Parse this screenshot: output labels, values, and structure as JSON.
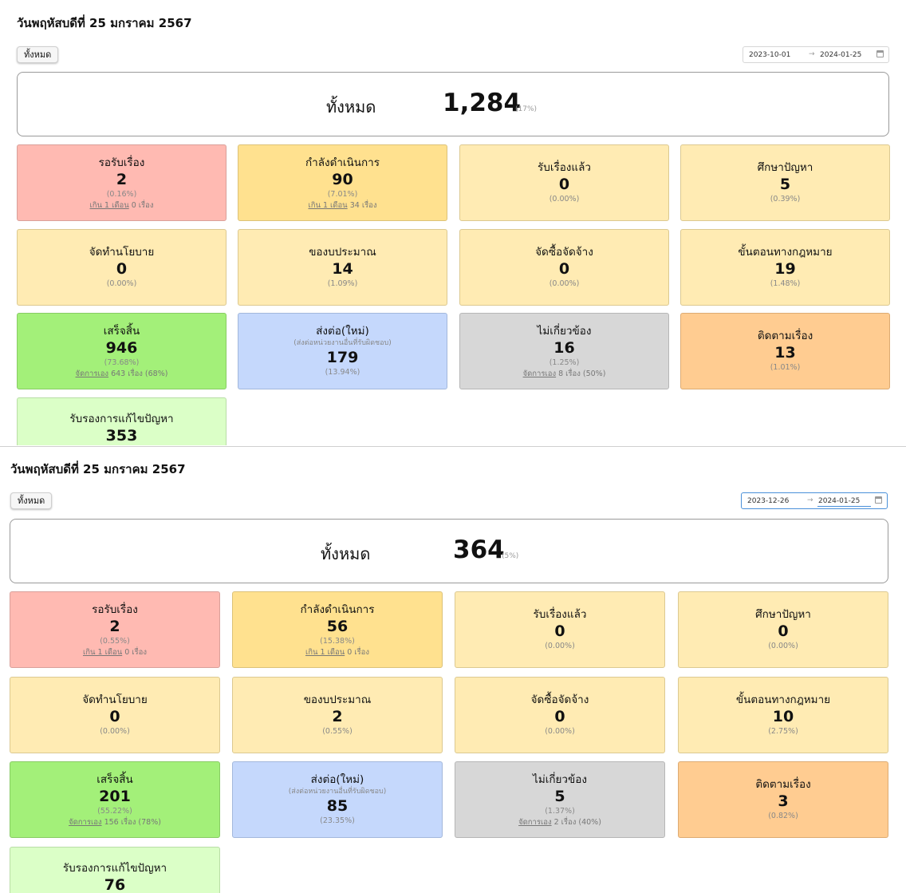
{
  "panels": [
    {
      "date_title": "วันพฤหัสบดีที่ 25 มกราคม 2567",
      "filter_button": "ทั้งหมด",
      "range": {
        "start": "2023-10-01",
        "separator": "→",
        "end": "2024-01-25"
      },
      "total": {
        "label": "ทั้งหมด",
        "value": "1,284",
        "pct": "(17%)"
      },
      "cards": [
        {
          "title": "รอรับเรื่อง",
          "value": "2",
          "pct": "(0.16%)",
          "note_link": "เกิน 1 เดือน",
          "note_rest": " 0 เรื่อง"
        },
        {
          "title": "กำลังดำเนินการ",
          "value": "90",
          "pct": "(7.01%)",
          "note_link": "เกิน 1 เดือน",
          "note_rest": " 34 เรื่อง"
        },
        {
          "title": "รับเรื่องแล้ว",
          "value": "0",
          "pct": "(0.00%)"
        },
        {
          "title": "ศึกษาปัญหา",
          "value": "5",
          "pct": "(0.39%)"
        },
        {
          "title": "จัดทำนโยบาย",
          "value": "0",
          "pct": "(0.00%)"
        },
        {
          "title": "ของบประมาณ",
          "value": "14",
          "pct": "(1.09%)"
        },
        {
          "title": "จัดซื้อจัดจ้าง",
          "value": "0",
          "pct": "(0.00%)"
        },
        {
          "title": "ขั้นตอนทางกฎหมาย",
          "value": "19",
          "pct": "(1.48%)"
        },
        {
          "title": "เสร็จสิ้น",
          "value": "946",
          "pct": "(73.68%)",
          "note_link": "จัดการเอง",
          "note_rest": " 643 เรื่อง (68%)"
        },
        {
          "title": "ส่งต่อ(ใหม่)",
          "subtitle": "(ส่งต่อหน่วยงานอื่นที่รับผิดชอบ)",
          "value": "179",
          "pct": "(13.94%)"
        },
        {
          "title": "ไม่เกี่ยวข้อง",
          "value": "16",
          "pct": "(1.25%)",
          "note_link": "จัดการเอง",
          "note_rest": " 8 เรื่อง (50%)"
        },
        {
          "title": "ติดตามเรื่อง",
          "value": "13",
          "pct": "(1.01%)"
        },
        {
          "title": "รับรองการแก้ไขปัญหา",
          "value": "353"
        }
      ]
    },
    {
      "date_title": "วันพฤหัสบดีที่ 25 มกราคม 2567",
      "filter_button": "ทั้งหมด",
      "range": {
        "start": "2023-12-26",
        "separator": "→",
        "end": "2024-01-25"
      },
      "total": {
        "label": "ทั้งหมด",
        "value": "364",
        "pct": "(5%)"
      },
      "cards": [
        {
          "title": "รอรับเรื่อง",
          "value": "2",
          "pct": "(0.55%)",
          "note_link": "เกิน 1 เดือน",
          "note_rest": " 0 เรื่อง"
        },
        {
          "title": "กำลังดำเนินการ",
          "value": "56",
          "pct": "(15.38%)",
          "note_link": "เกิน 1 เดือน",
          "note_rest": " 0 เรื่อง"
        },
        {
          "title": "รับเรื่องแล้ว",
          "value": "0",
          "pct": "(0.00%)"
        },
        {
          "title": "ศึกษาปัญหา",
          "value": "0",
          "pct": "(0.00%)"
        },
        {
          "title": "จัดทำนโยบาย",
          "value": "0",
          "pct": "(0.00%)"
        },
        {
          "title": "ของบประมาณ",
          "value": "2",
          "pct": "(0.55%)"
        },
        {
          "title": "จัดซื้อจัดจ้าง",
          "value": "0",
          "pct": "(0.00%)"
        },
        {
          "title": "ขั้นตอนทางกฎหมาย",
          "value": "10",
          "pct": "(2.75%)"
        },
        {
          "title": "เสร็จสิ้น",
          "value": "201",
          "pct": "(55.22%)",
          "note_link": "จัดการเอง",
          "note_rest": " 156 เรื่อง (78%)"
        },
        {
          "title": "ส่งต่อ(ใหม่)",
          "subtitle": "(ส่งต่อหน่วยงานอื่นที่รับผิดชอบ)",
          "value": "85",
          "pct": "(23.35%)"
        },
        {
          "title": "ไม่เกี่ยวข้อง",
          "value": "5",
          "pct": "(1.37%)",
          "note_link": "จัดการเอง",
          "note_rest": " 2 เรื่อง (40%)"
        },
        {
          "title": "ติดตามเรื่อง",
          "value": "3",
          "pct": "(0.82%)"
        },
        {
          "title": "รับรองการแก้ไขปัญหา",
          "value": "76"
        }
      ]
    }
  ],
  "colors": {
    "waiting": "#ffbab2",
    "in_progress": "#ffe18f",
    "stage": "#ffebb3",
    "done": "#a3f079",
    "forwarded": "#c5d8fc",
    "unrelated": "#d7d7d7",
    "follow_up": "#ffcc91",
    "certified": "#dbffc7"
  }
}
